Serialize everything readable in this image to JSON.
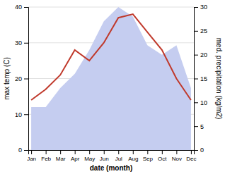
{
  "chart_data": {
    "type": "line",
    "xlabel": "date (month)",
    "ylabel": "max temp (C)",
    "y2label": "med. precipitation (kg/m2)",
    "categories": [
      "Jan",
      "Feb",
      "Mar",
      "Apr",
      "May",
      "Jun",
      "Jul",
      "Aug",
      "Sep",
      "Oct",
      "Nov",
      "Dec"
    ],
    "series": [
      {
        "type": "area",
        "axis": "y2",
        "color": "#c5cdf0",
        "values": [
          9,
          9,
          13,
          16,
          21,
          27,
          30,
          28,
          22,
          20,
          22,
          13
        ]
      },
      {
        "type": "line",
        "color": "#c0392b",
        "values": [
          14,
          17,
          21,
          28,
          25,
          30,
          37,
          38,
          33,
          28,
          20,
          14
        ]
      }
    ],
    "ylim": [
      0,
      40
    ],
    "yticks": [
      0,
      10,
      20,
      30,
      40
    ],
    "y2lim": [
      0,
      30
    ],
    "y2ticks": [
      0,
      5,
      10,
      15,
      20,
      25,
      30
    ],
    "grid": true
  }
}
